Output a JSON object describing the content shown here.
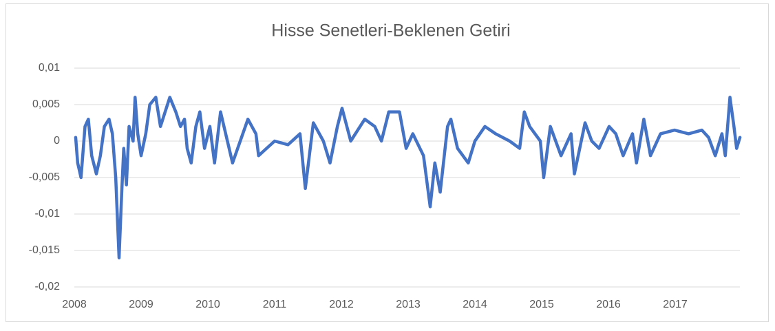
{
  "chart_data": {
    "type": "line",
    "title": "Hisse Senetleri-Beklenen Getiri",
    "color": "#4472c4",
    "grid": true,
    "xlim": [
      2008,
      2018
    ],
    "xticks": [
      2008,
      2009,
      2010,
      2011,
      2012,
      2013,
      2014,
      2015,
      2016,
      2017
    ],
    "ylim": [
      -0.02,
      0.01
    ],
    "yticks": [
      {
        "value": -0.02,
        "label": "-0,02"
      },
      {
        "value": -0.015,
        "label": "-0,015"
      },
      {
        "value": -0.01,
        "label": "-0,01"
      },
      {
        "value": -0.005,
        "label": "-0,005"
      },
      0,
      {
        "value": 0.005,
        "label": "0,005"
      },
      {
        "value": 0.01,
        "label": "0,01"
      }
    ],
    "x": [
      2008.02,
      2008.05,
      2008.1,
      2008.16,
      2008.21,
      2008.26,
      2008.33,
      2008.39,
      2008.45,
      2008.52,
      2008.57,
      2008.62,
      2008.67,
      2008.71,
      2008.74,
      2008.78,
      2008.82,
      2008.88,
      2008.91,
      2008.95,
      2009.0,
      2009.07,
      2009.13,
      2009.22,
      2009.29,
      2009.36,
      2009.43,
      2009.52,
      2009.59,
      2009.65,
      2009.69,
      2009.75,
      2009.82,
      2009.88,
      2009.95,
      2010.03,
      2010.1,
      2010.19,
      2010.37,
      2010.6,
      2010.72,
      2010.76,
      2011.0,
      2011.2,
      2011.38,
      2011.46,
      2011.58,
      2011.73,
      2011.83,
      2011.94,
      2012.01,
      2012.14,
      2012.35,
      2012.5,
      2012.6,
      2012.71,
      2012.87,
      2012.97,
      2013.07,
      2013.23,
      2013.33,
      2013.4,
      2013.48,
      2013.59,
      2013.64,
      2013.74,
      2013.9,
      2014.0,
      2014.15,
      2014.31,
      2014.52,
      2014.67,
      2014.74,
      2014.82,
      2014.98,
      2015.03,
      2015.13,
      2015.29,
      2015.44,
      2015.49,
      2015.65,
      2015.75,
      2015.86,
      2016.01,
      2016.11,
      2016.22,
      2016.36,
      2016.42,
      2016.53,
      2016.63,
      2016.78,
      2016.99,
      2017.2,
      2017.4,
      2017.5,
      2017.6,
      2017.7,
      2017.75,
      2017.82,
      2017.88,
      2017.92,
      2017.97
    ],
    "values": [
      0.0005,
      -0.003,
      -0.005,
      0.002,
      0.003,
      -0.002,
      -0.0045,
      -0.002,
      0.002,
      0.003,
      0.001,
      -0.005,
      -0.016,
      -0.007,
      -0.001,
      -0.006,
      0.002,
      0.0,
      0.006,
      0.001,
      -0.002,
      0.001,
      0.005,
      0.006,
      0.002,
      0.004,
      0.006,
      0.004,
      0.002,
      0.003,
      -0.001,
      -0.003,
      0.002,
      0.004,
      -0.001,
      0.002,
      -0.003,
      0.004,
      -0.003,
      0.003,
      0.001,
      -0.002,
      0.0,
      -0.0005,
      0.001,
      -0.0065,
      0.0025,
      0.0,
      -0.003,
      0.002,
      0.0045,
      0.0,
      0.003,
      0.002,
      0.0,
      0.004,
      0.004,
      -0.001,
      0.001,
      -0.002,
      -0.009,
      -0.003,
      -0.007,
      0.002,
      0.003,
      -0.001,
      -0.003,
      0.0,
      0.002,
      0.001,
      0.0,
      -0.001,
      0.004,
      0.002,
      0.0,
      -0.005,
      0.002,
      -0.002,
      0.001,
      -0.0045,
      0.0025,
      0.0,
      -0.001,
      0.002,
      0.001,
      -0.002,
      0.001,
      -0.003,
      0.003,
      -0.002,
      0.001,
      0.0015,
      0.001,
      0.0015,
      0.0005,
      -0.002,
      0.001,
      -0.002,
      0.006,
      0.002,
      -0.001,
      0.0005
    ]
  }
}
